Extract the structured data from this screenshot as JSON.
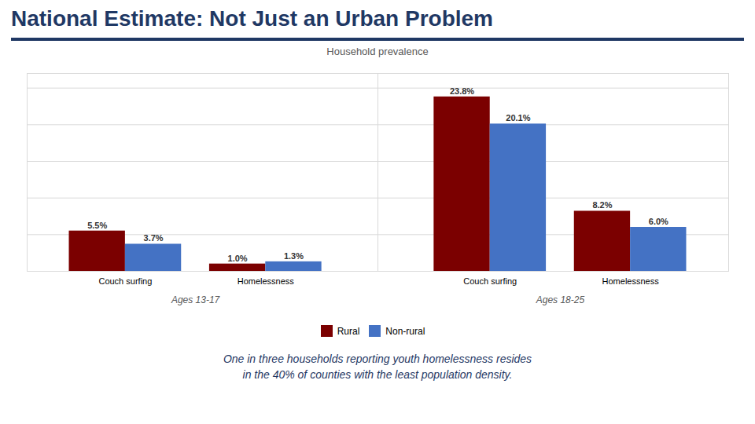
{
  "chart_data": {
    "type": "bar",
    "title": "National Estimate: Not Just an Urban Problem",
    "subtitle": "Household prevalence",
    "annotations": [
      "One in three households reporting youth homelessness resides",
      "in the 40% of counties with the least population density."
    ],
    "categories": [
      "Couch surfing",
      "Homelessness",
      "Couch surfing",
      "Homelessness"
    ],
    "groups": [
      "Ages 13-17",
      "Ages 13-17",
      "Ages 18-25",
      "Ages 18-25"
    ],
    "series": [
      {
        "name": "Rural",
        "color": "#7B0000",
        "values": [
          5.5,
          1.0,
          23.8,
          8.2
        ],
        "value_labels": [
          "5.5%",
          "1.0%",
          "23.8%",
          "8.2%"
        ]
      },
      {
        "name": "Non-rural",
        "color": "#4472C4",
        "values": [
          3.7,
          1.3,
          20.1,
          6.0
        ],
        "value_labels": [
          "3.7%",
          "1.3%",
          "20.1%",
          "6.0%"
        ]
      }
    ],
    "ylim": [
      0,
      27
    ],
    "yticks": [
      5,
      10,
      15,
      20,
      25
    ],
    "grid": true,
    "tick_labels": "x",
    "data_labels": true,
    "legend": "bottom"
  }
}
